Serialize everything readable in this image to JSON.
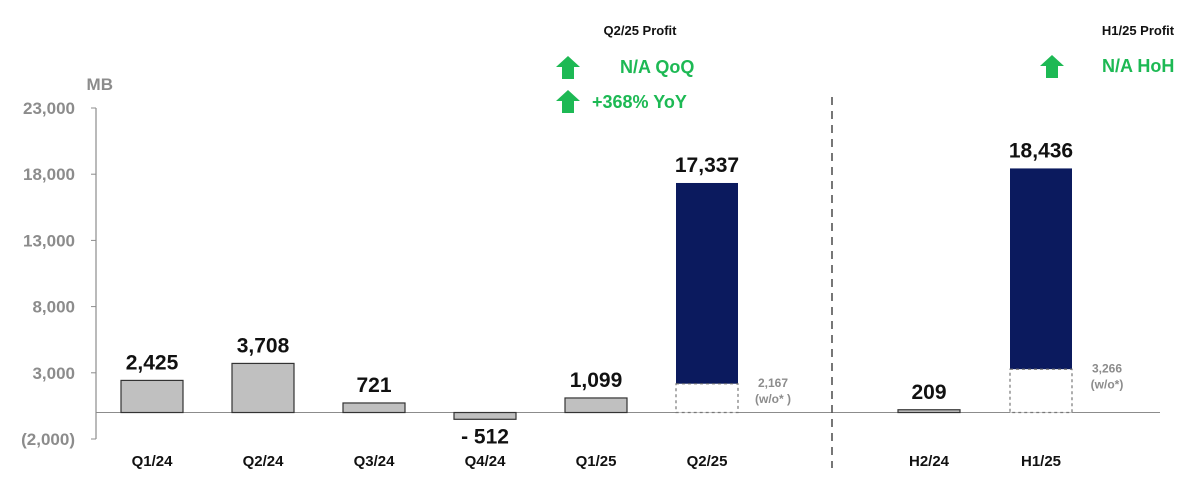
{
  "chart_data": {
    "type": "bar",
    "unit": "MB",
    "categories": [
      "Q1/24",
      "Q2/24",
      "Q3/24",
      "Q4/24",
      "Q1/25",
      "Q2/25",
      "H2/24",
      "H1/25"
    ],
    "values": [
      2425,
      3708,
      721,
      -512,
      1099,
      17337,
      209,
      18436
    ],
    "value_labels": [
      "2,425",
      "3,708",
      "721",
      "- 512",
      "1,099",
      "17,337",
      "209",
      "18,436"
    ],
    "highlighted": [
      false,
      false,
      false,
      false,
      false,
      true,
      false,
      true
    ],
    "excluding": [
      {
        "category": "Q2/25",
        "value": 2167,
        "label_value": "2,167",
        "label_note": "(w/o* )"
      },
      {
        "category": "H1/25",
        "value": 3266,
        "label_value": "3,266",
        "label_note": "(w/o*)"
      }
    ],
    "yticks": [
      23000,
      18000,
      13000,
      8000,
      3000,
      -2000
    ],
    "ytick_labels": [
      "23,000",
      "18,000",
      "13,000",
      "8,000",
      "3,000",
      "(2,000)"
    ],
    "ylim": [
      -2000,
      23000
    ],
    "grid": false,
    "colors": {
      "base": "#c0c0c0",
      "highlight": "#0b1a5e",
      "positive": "#1db954",
      "axis": "#8c8c8c"
    }
  },
  "annotations": {
    "quarter": {
      "title": "Q2/25 Profit",
      "qoq": "N/A  QoQ",
      "yoy": "+368%  YoY"
    },
    "half": {
      "title": "H1/25 Profit",
      "hoh": "N/A  HoH"
    }
  }
}
